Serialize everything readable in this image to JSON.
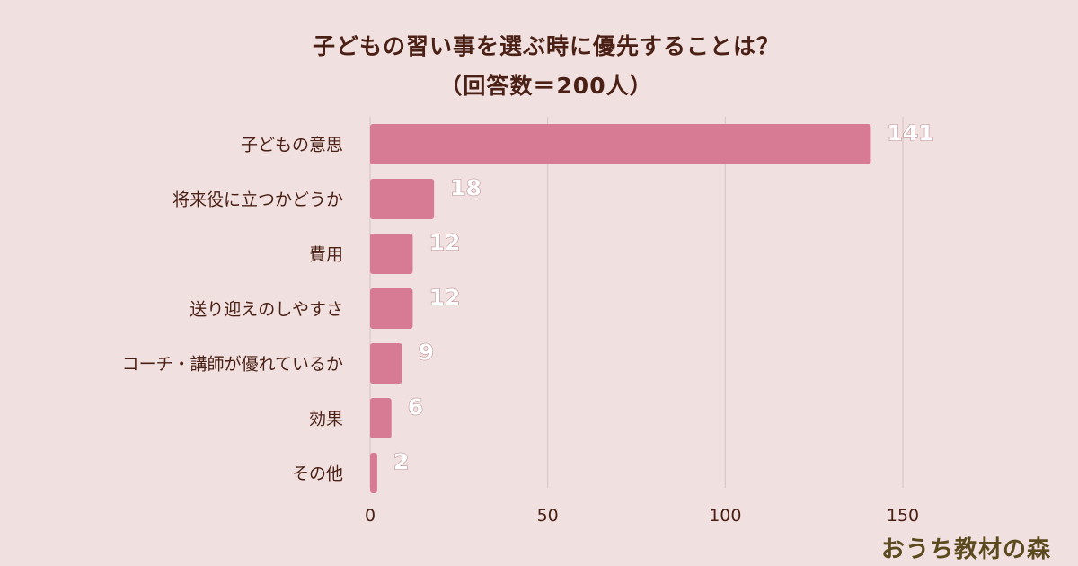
{
  "chart_data": {
    "type": "bar",
    "orientation": "horizontal",
    "title": "子どもの習い事を選ぶ時に優先することは？",
    "subtitle": "（回答数＝200人）",
    "categories": [
      "子どもの意思",
      "将来役に立つかどうか",
      "費用",
      "送り迎えのしやすさ",
      "コーチ・講師が優れているか",
      "効果",
      "その他"
    ],
    "values": [
      141,
      18,
      12,
      12,
      9,
      6,
      2
    ],
    "value_labels": [
      "141",
      "18",
      "12",
      "12",
      "9",
      "6",
      "2"
    ],
    "xlim": [
      0,
      150
    ],
    "xticks": [
      0,
      50,
      100,
      150
    ],
    "xtick_labels": [
      "0",
      "50",
      "100",
      "150"
    ],
    "xlabel": "",
    "ylabel": "",
    "grid": true,
    "bar_color": "#d67b93"
  },
  "brand": {
    "text": "おうち教材の森"
  }
}
